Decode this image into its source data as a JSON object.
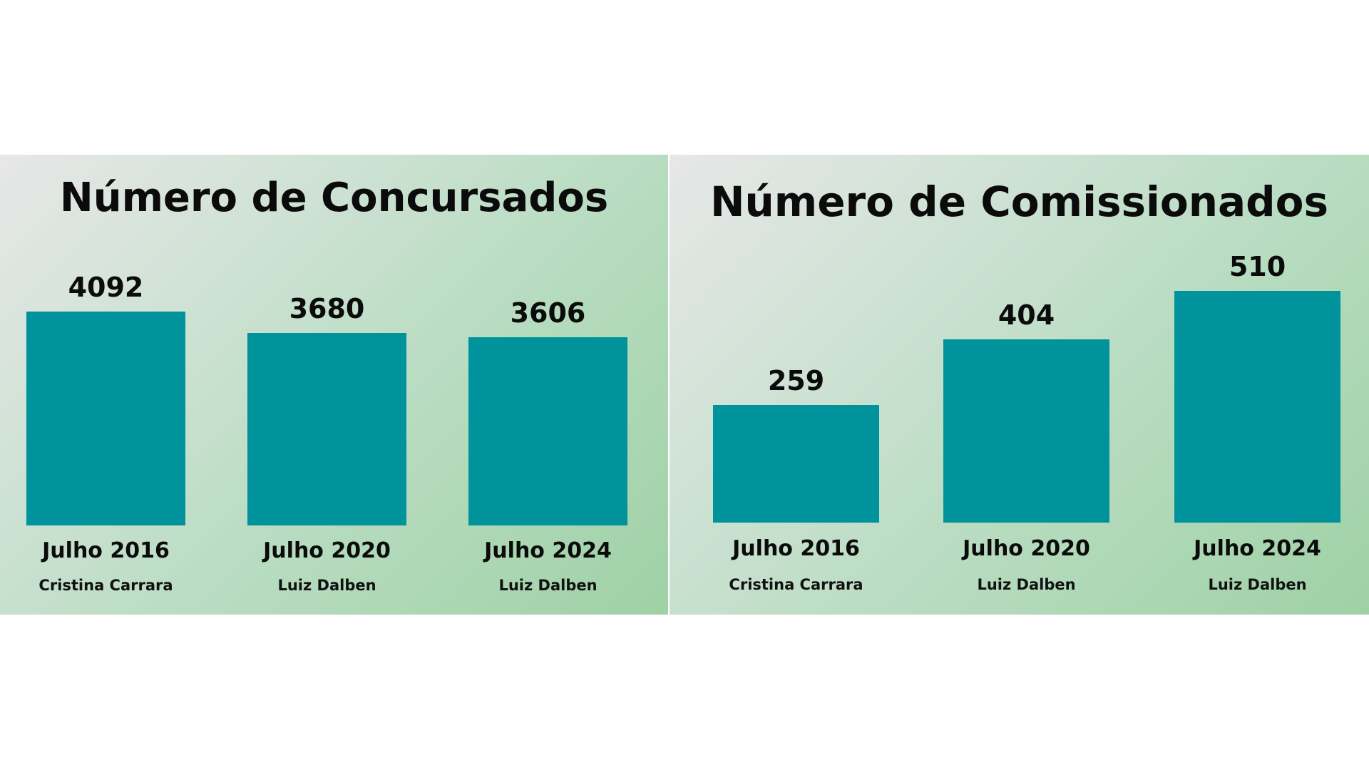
{
  "chart_data": [
    {
      "type": "bar",
      "title": "Número de Concursados",
      "categories": [
        "Julho 2016",
        "Julho 2020",
        "Julho 2024"
      ],
      "sublabels": [
        "Cristina Carrara",
        "Luiz Dalben",
        "Luiz Dalben"
      ],
      "values": [
        4092,
        3680,
        3606
      ],
      "value_labels": [
        "4092",
        "3680",
        "3606"
      ],
      "bar_color": "#00939b",
      "grid": false
    },
    {
      "type": "bar",
      "title": "Número de Comissionados",
      "categories": [
        "Julho 2016",
        "Julho 2020",
        "Julho 2024"
      ],
      "sublabels": [
        "Cristina Carrara",
        "Luiz Dalben",
        "Luiz Dalben"
      ],
      "values": [
        259,
        404,
        510
      ],
      "value_labels": [
        "259",
        "404",
        "510"
      ],
      "bar_color": "#00939b",
      "grid": false
    }
  ]
}
